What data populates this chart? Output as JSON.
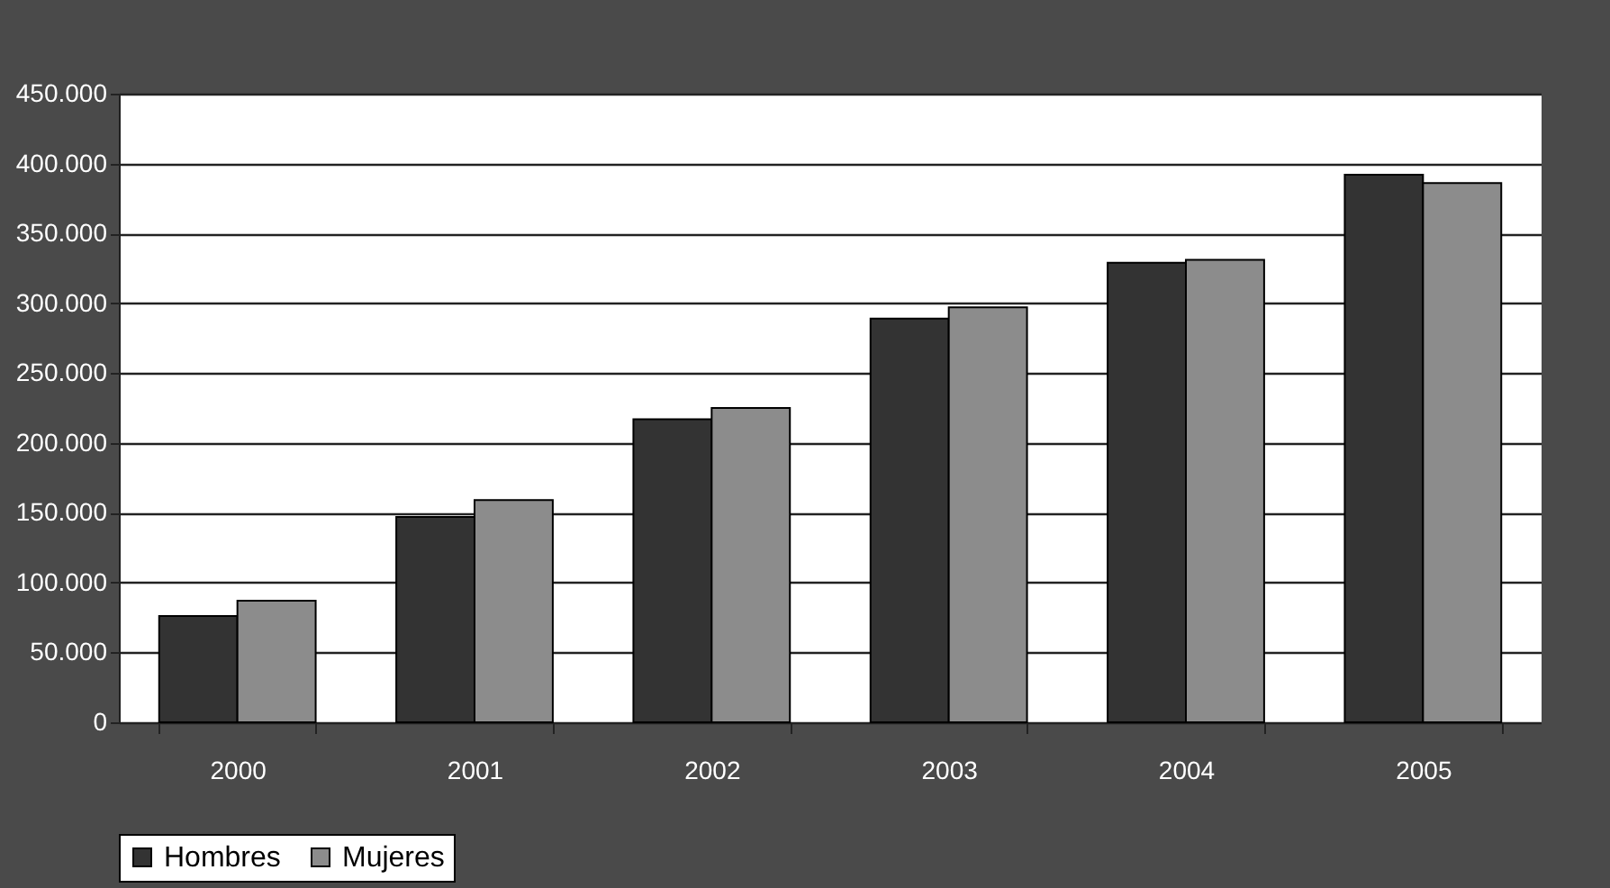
{
  "chart_data": {
    "type": "bar",
    "categories": [
      "2000",
      "2001",
      "2002",
      "2003",
      "2004",
      "2005"
    ],
    "series": [
      {
        "name": "Hombres",
        "color": "#333333",
        "values": [
          76000,
          147000,
          217000,
          289000,
          329000,
          392000
        ]
      },
      {
        "name": "Mujeres",
        "color": "#8c8c8c",
        "values": [
          87000,
          159000,
          225000,
          297000,
          331000,
          386000
        ]
      }
    ],
    "ylim": [
      0,
      450000
    ],
    "yticks": [
      {
        "value": 0,
        "label": "0"
      },
      {
        "value": 50000,
        "label": "50.000"
      },
      {
        "value": 100000,
        "label": "100.000"
      },
      {
        "value": 150000,
        "label": "150.000"
      },
      {
        "value": 200000,
        "label": "200.000"
      },
      {
        "value": 250000,
        "label": "250.000"
      },
      {
        "value": 300000,
        "label": "300.000"
      },
      {
        "value": 350000,
        "label": "350.000"
      },
      {
        "value": 400000,
        "label": "400.000"
      },
      {
        "value": 450000,
        "label": "450.000"
      }
    ],
    "grid": "y",
    "legend": "bottom"
  }
}
